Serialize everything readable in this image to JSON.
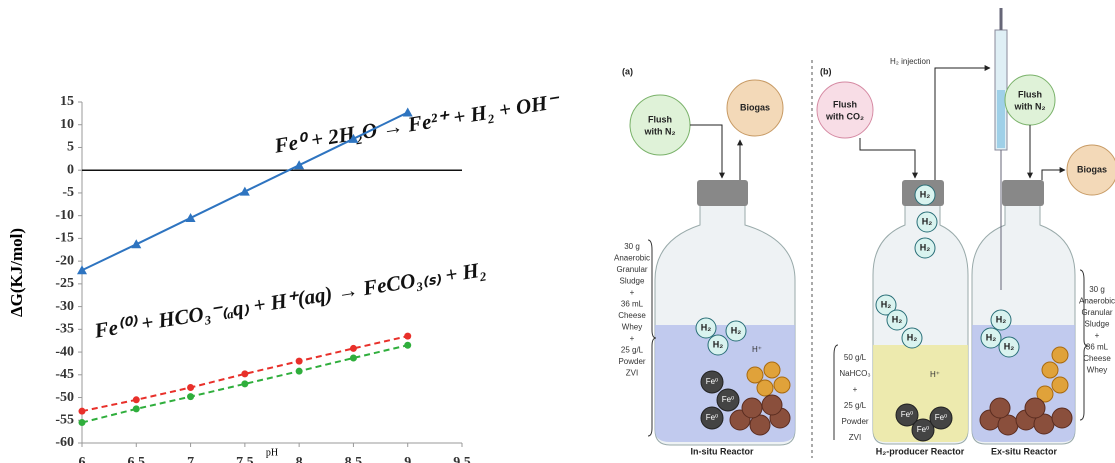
{
  "chart_data": {
    "type": "line",
    "x": [
      6,
      6.5,
      7,
      7.5,
      8,
      8.5,
      9
    ],
    "series": [
      {
        "color": "#2e74c0",
        "marker": "triangle",
        "dashed": false,
        "values": [
          -22,
          -16.3,
          -10.5,
          -4.7,
          1.1,
          6.9,
          12.7
        ]
      },
      {
        "color": "#e8302a",
        "marker": "circle",
        "dashed": true,
        "values": [
          -53,
          -50.5,
          -47.8,
          -44.8,
          -42,
          -39.2,
          -36.5
        ]
      },
      {
        "color": "#2fae3c",
        "marker": "circle",
        "dashed": true,
        "values": [
          -55.5,
          -52.5,
          -49.8,
          -47,
          -44.2,
          -41.3,
          -38.5
        ]
      }
    ],
    "xlim": [
      6,
      9.5
    ],
    "xticks": [
      6,
      6.5,
      7,
      7.5,
      8,
      8.5,
      9,
      9.5
    ],
    "ylim": [
      -60,
      15
    ],
    "yticks": [
      15,
      10,
      5,
      0,
      -5,
      -10,
      -15,
      -20,
      -25,
      -30,
      -35,
      -40,
      -45,
      -50,
      -55,
      -60
    ],
    "x_label": "pH",
    "y_label": "ΔG(KJ/mol)",
    "annotations": [
      "Fe⁰ + 2H₂O → Fe²⁺ + H₂ + OH⁻",
      "Fe⁽⁰⁾ + HCO₃⁻₍ₐq₎ + H⁺(aq) → FeCO₃₍ₛ₎ +   H₂"
    ]
  },
  "diagram": {
    "panel_a": "(a)",
    "panel_b": "(b)",
    "flush_n2_a": [
      "Flush",
      "with N₂"
    ],
    "biogas_a": "Biogas",
    "flush_co2": [
      "Flush",
      "with CO₂"
    ],
    "h2_injection": "H₂ injection",
    "flush_n2_b": [
      "Flush",
      "with N₂"
    ],
    "biogas_b": "Biogas",
    "in_situ_inputs": [
      "30 g",
      "Anaerobic",
      "Granular",
      "Sludge",
      "+",
      "36 mL",
      "Cheese",
      "Whey",
      "+",
      "25 g/L",
      "Powder",
      "ZVI"
    ],
    "producer_inputs": [
      "50 g/L",
      "NaHCO₃",
      "+",
      "25 g/L",
      "Powder",
      "ZVI"
    ],
    "ex_situ_inputs": [
      "30 g",
      "Anaerobic",
      "Granular",
      "Sludge",
      "+",
      "36 mL",
      "Cheese",
      "Whey"
    ],
    "in_situ_label": "In-situ Reactor",
    "producer_label": "H₂-producer Reactor",
    "ex_situ_label": "Ex-situ Reactor",
    "bubbles": [
      "H₂",
      "H₂",
      "H₂",
      "H₂",
      "H₂",
      "H₂",
      "H₂",
      "H₂",
      "H₂",
      "H₂",
      "H₂",
      "H₂"
    ],
    "iron": [
      "Fe⁰",
      "Fe⁰",
      "Fe⁰",
      "Fe⁰",
      "Fe⁰",
      "Fe⁰"
    ],
    "protons": [
      "H⁺",
      "H⁺"
    ]
  }
}
